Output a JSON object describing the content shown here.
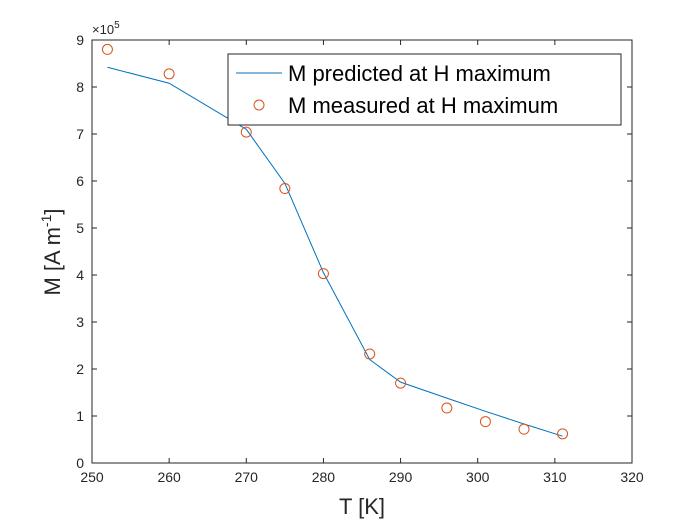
{
  "chart_data": {
    "type": "line+scatter",
    "xlabel": "T [K]",
    "ylabel": "M [A m",
    "ylabel_superscript": "-1",
    "ylabel_suffix": "]",
    "y_multiplier_base": "×10",
    "y_multiplier_exp": "5",
    "xlim": [
      250,
      320
    ],
    "ylim": [
      0,
      9
    ],
    "xticks": [
      250,
      260,
      270,
      280,
      290,
      300,
      310,
      320
    ],
    "yticks": [
      0,
      1,
      2,
      3,
      4,
      5,
      6,
      7,
      8,
      9
    ],
    "grid": false,
    "legend_position": "top-right",
    "series": [
      {
        "name": "M predicted at H maximum",
        "style": "line",
        "color": "#0072BD",
        "x": [
          252,
          260,
          270,
          275,
          280,
          286,
          290,
          296,
          301,
          306,
          311
        ],
        "y": [
          8.42,
          8.08,
          7.1,
          5.95,
          4.05,
          2.2,
          1.72,
          1.38,
          1.1,
          0.83,
          0.57
        ]
      },
      {
        "name": "M measured at H maximum",
        "style": "markers",
        "marker": "circle",
        "color": "#D95319",
        "x": [
          252,
          260,
          270,
          275,
          280,
          286,
          290,
          296,
          301,
          306,
          311
        ],
        "y": [
          8.8,
          8.28,
          7.04,
          5.84,
          4.03,
          2.32,
          1.7,
          1.17,
          0.88,
          0.72,
          0.62
        ]
      }
    ]
  }
}
